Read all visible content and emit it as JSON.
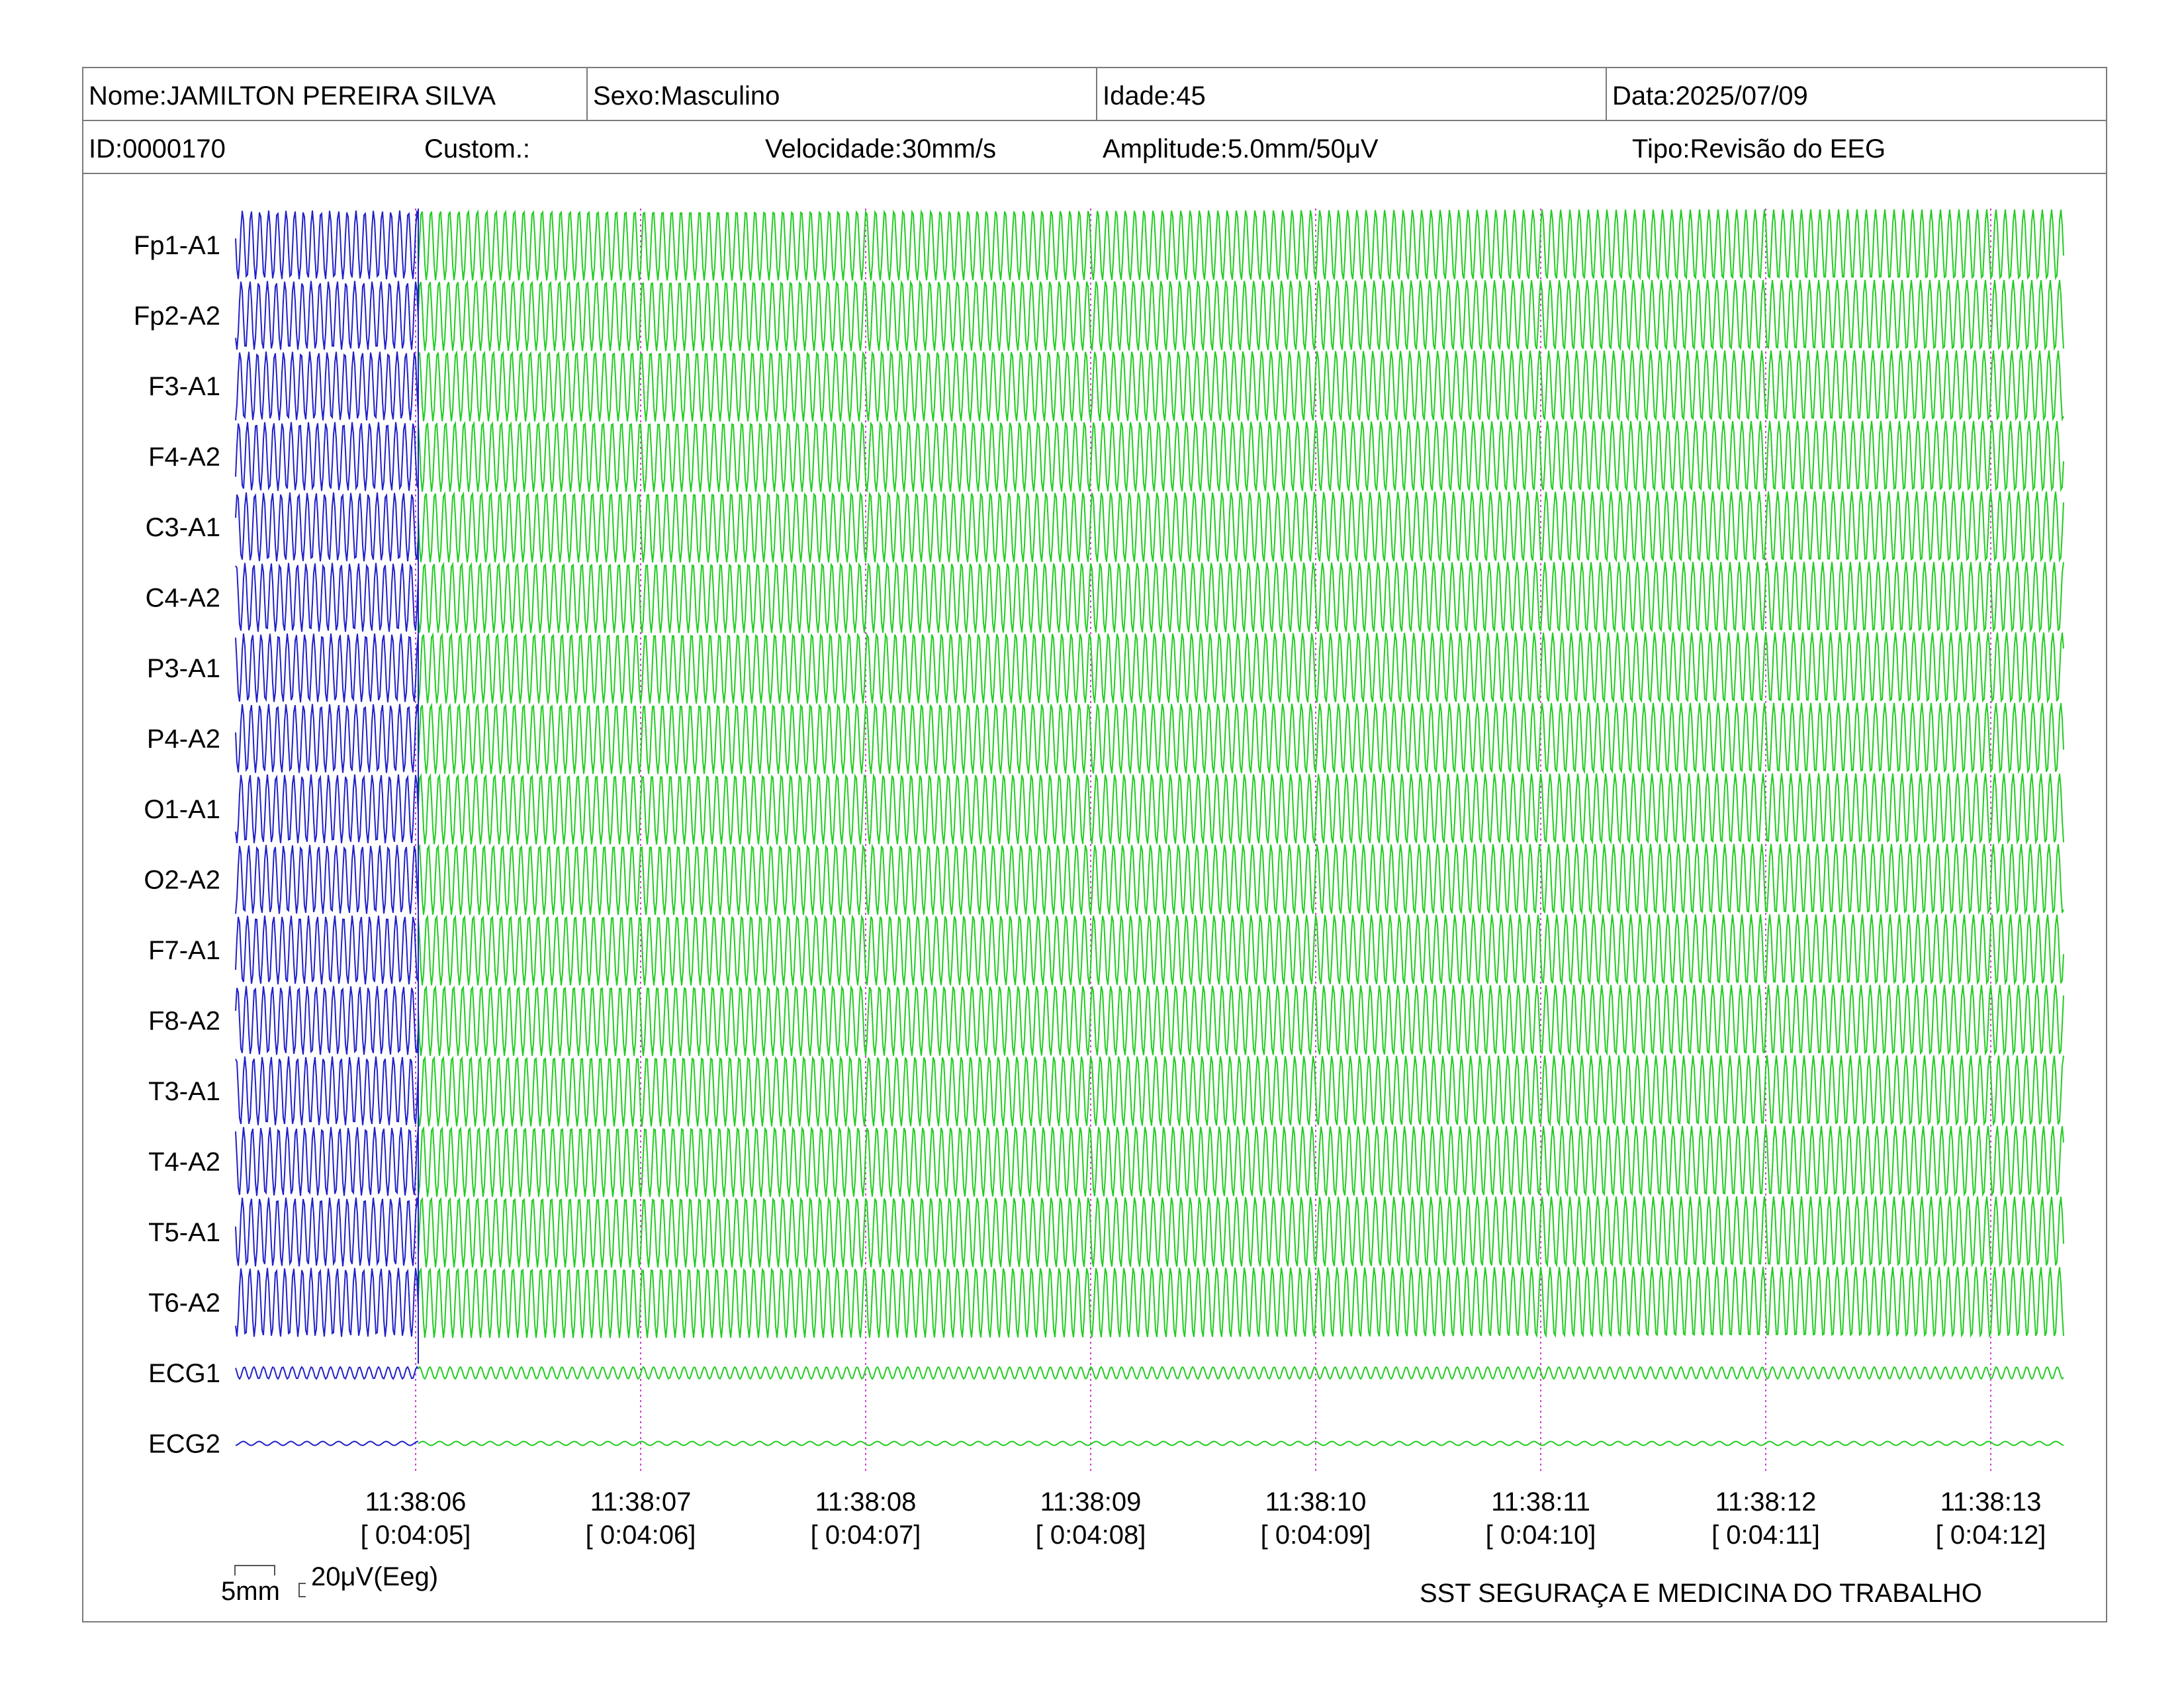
{
  "header": {
    "nome": "Nome:JAMILTON PEREIRA SILVA",
    "sexo": "Sexo:Masculino",
    "idade": "Idade:45",
    "data": "Data:2025/07/09",
    "id": "ID:0000170",
    "custom": "Custom.:",
    "velocidade": "Velocidade:30mm/s",
    "amplitude": "Amplitude:5.0mm/50μV",
    "tipo": "Tipo:Revisão do EEG"
  },
  "scale": {
    "time": "5mm",
    "amplitude": "20μV(Eeg)"
  },
  "footer": "SST SEGURAÇA E MEDICINA DO TRABALHO",
  "colors": {
    "previous_segment": "#2020c8",
    "current_segment": "#22cc22",
    "time_marker": "#d040d0",
    "border": "#7a7a7a"
  },
  "chart_data": {
    "type": "line",
    "channels": [
      "Fp1-A1",
      "Fp2-A2",
      "F3-A1",
      "F4-A2",
      "C3-A1",
      "C4-A2",
      "P3-A1",
      "P4-A2",
      "O1-A1",
      "O2-A2",
      "F7-A1",
      "F8-A2",
      "T3-A1",
      "T4-A2",
      "T5-A1",
      "T6-A2",
      "ECG1",
      "ECG2"
    ],
    "time_ticks": [
      {
        "clock": "11:38:06",
        "elapsed": "[ 0:04:05]"
      },
      {
        "clock": "11:38:07",
        "elapsed": "[ 0:04:06]"
      },
      {
        "clock": "11:38:08",
        "elapsed": "[ 0:04:07]"
      },
      {
        "clock": "11:38:09",
        "elapsed": "[ 0:04:08]"
      },
      {
        "clock": "11:38:10",
        "elapsed": "[ 0:04:09]"
      },
      {
        "clock": "11:38:11",
        "elapsed": "[ 0:04:10]"
      },
      {
        "clock": "11:38:12",
        "elapsed": "[ 0:04:11]"
      },
      {
        "clock": "11:38:13",
        "elapsed": "[ 0:04:12]"
      }
    ],
    "speed_mm_per_s": 30,
    "sensitivity": "5.0mm/50μV",
    "grid": false
  }
}
